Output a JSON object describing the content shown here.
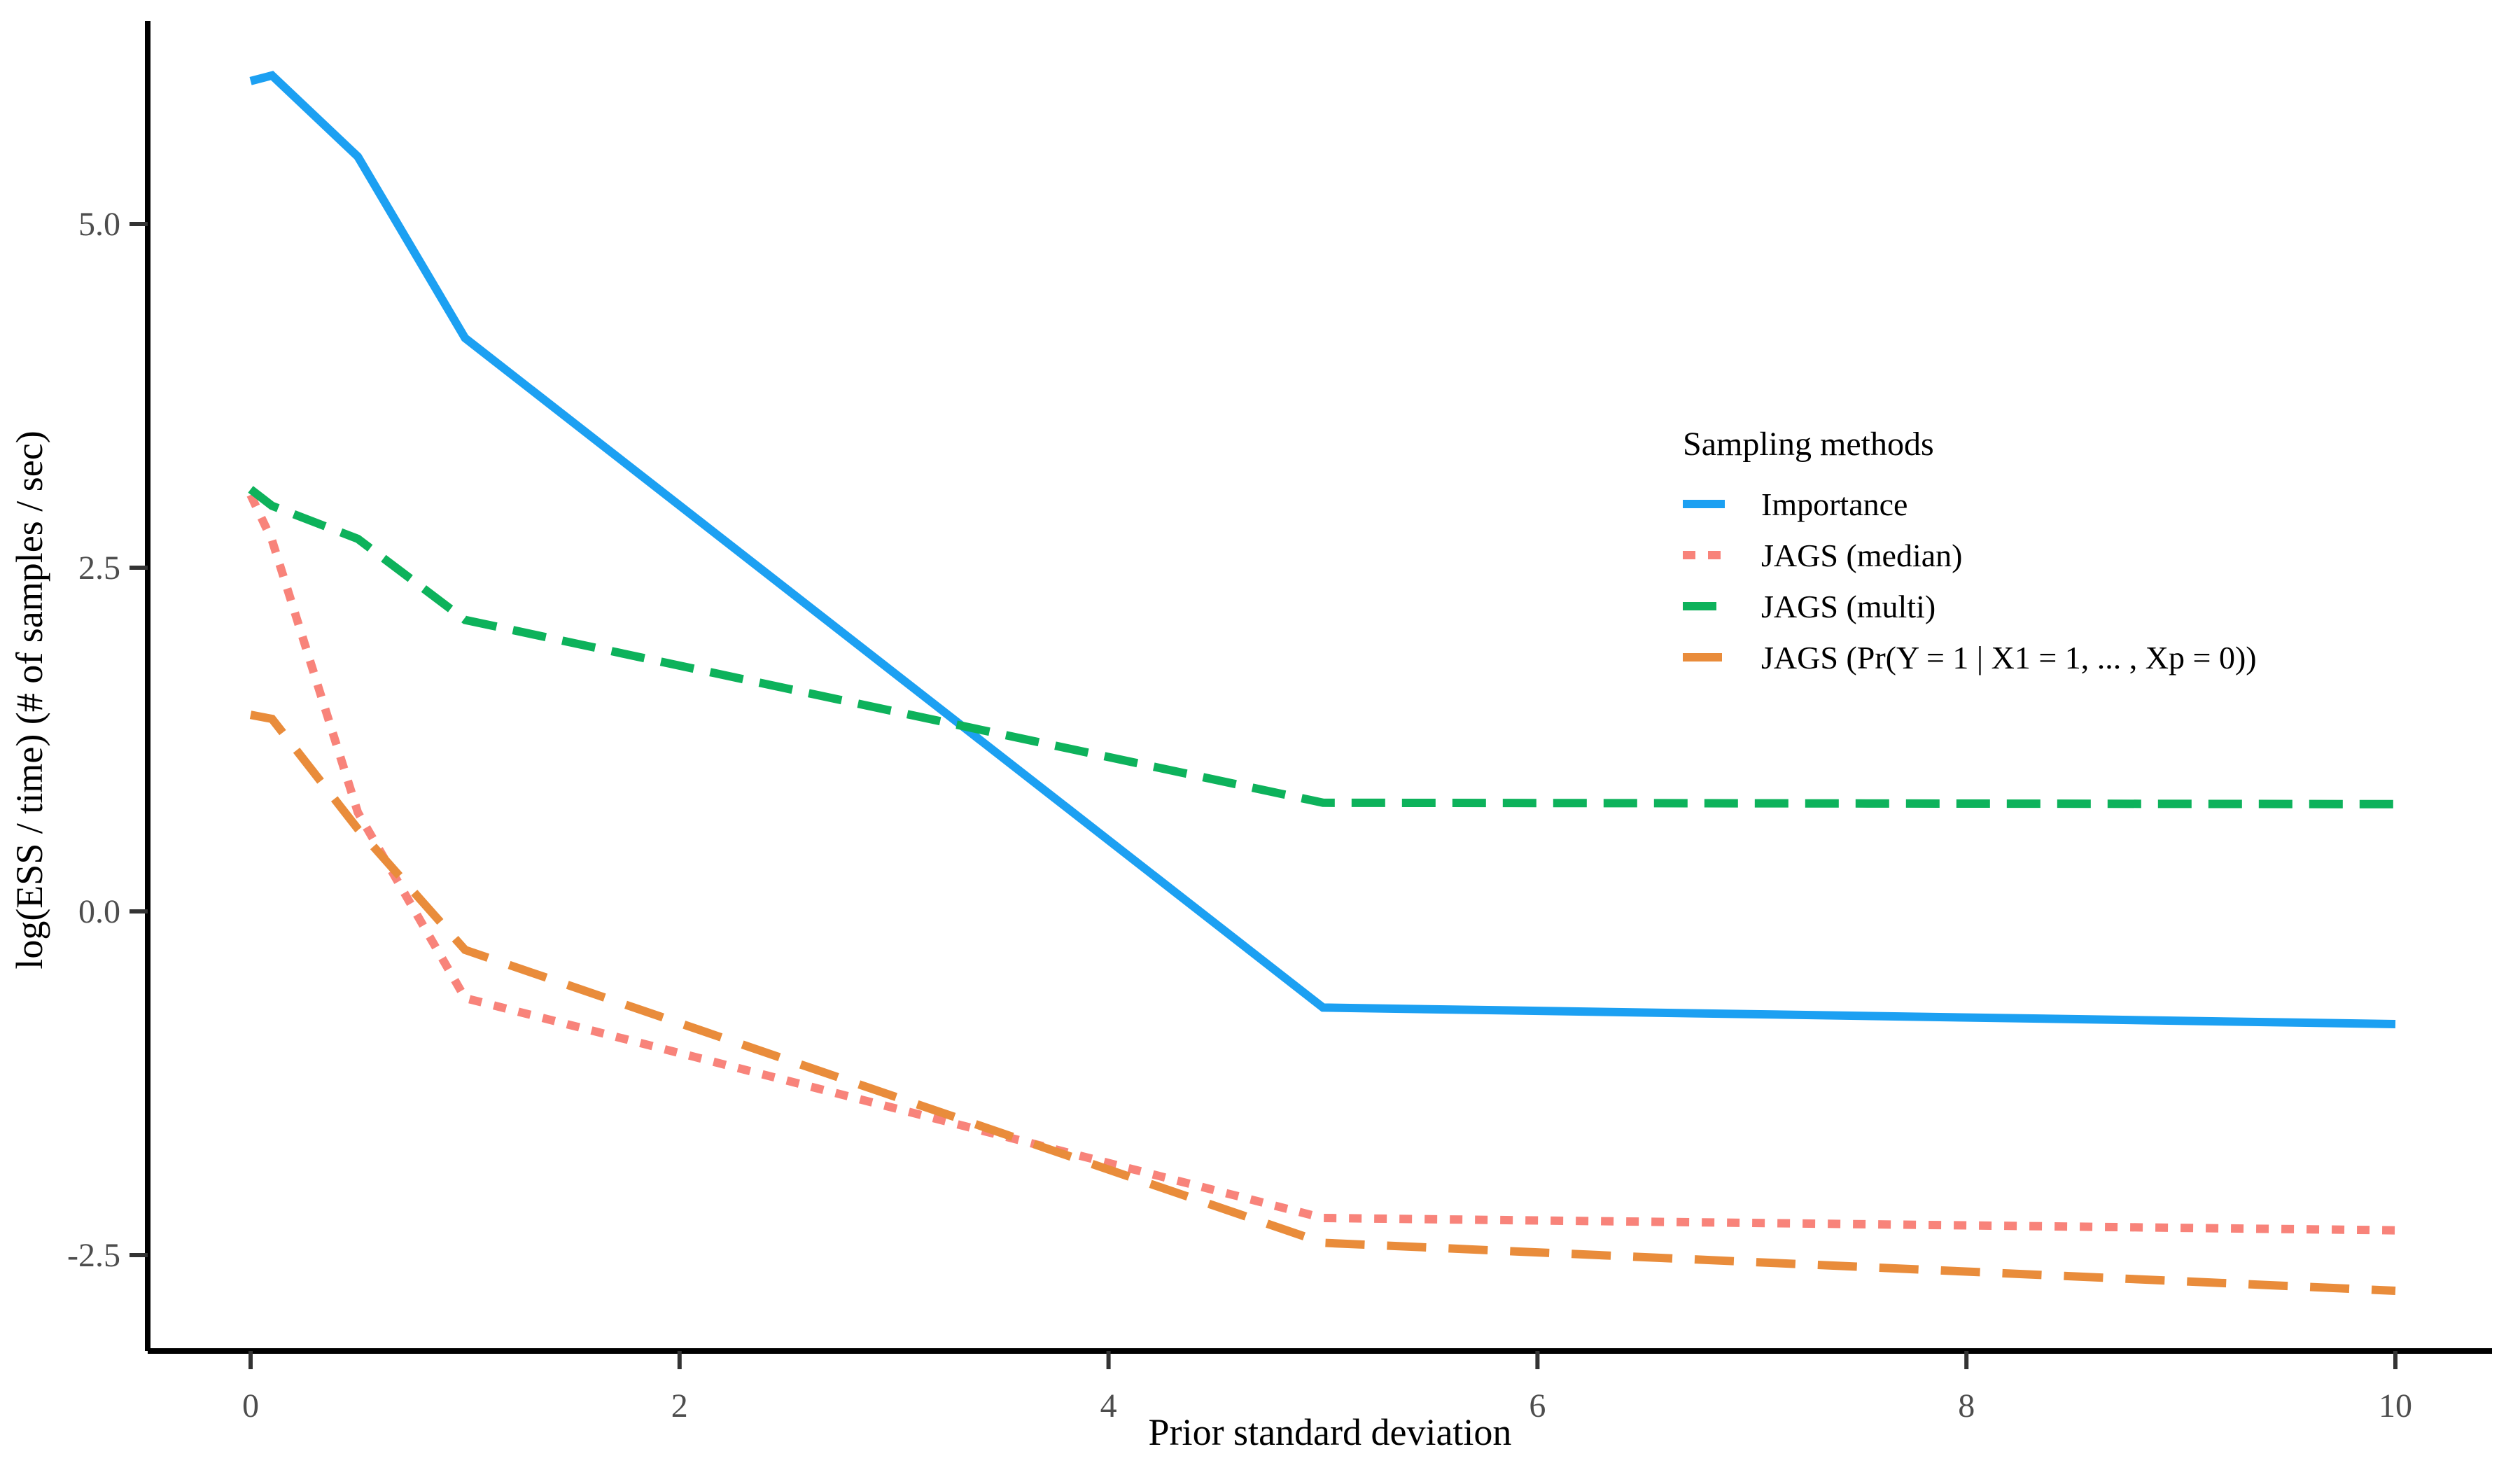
{
  "chart_data": {
    "type": "line",
    "title": "",
    "xlabel": "Prior standard deviation",
    "ylabel": "log(ESS / time) (# of samples / sec)",
    "xlim": [
      -0.5,
      10.45
    ],
    "ylim": [
      -3.2,
      6.5
    ],
    "grid": false,
    "background": "#ffffff",
    "x_ticks": {
      "values": [
        0,
        2,
        4,
        6,
        8,
        10
      ],
      "labels": [
        "0",
        "2",
        "4",
        "6",
        "8",
        "10"
      ]
    },
    "y_ticks": {
      "values": [
        -2.5,
        0,
        2.5,
        5
      ],
      "labels": [
        "-2.5",
        "0.0",
        "2.5",
        "5.0"
      ]
    },
    "legend": {
      "title": "Sampling methods",
      "position": "right-center"
    },
    "series": [
      {
        "name": "Importance",
        "color": "#1CA0F2",
        "dash": "none",
        "x": [
          0,
          0.1,
          0.5,
          1,
          5,
          10
        ],
        "y": [
          6.04,
          6.08,
          5.49,
          4.17,
          -0.7,
          -0.82
        ]
      },
      {
        "name": "JAGS (median)",
        "color": "#F8837A",
        "dash": "9 9",
        "x": [
          0,
          0.1,
          0.5,
          1,
          5,
          10
        ],
        "y": [
          3.03,
          2.7,
          0.72,
          -0.63,
          -2.23,
          -2.32
        ]
      },
      {
        "name": "JAGS (multi)",
        "color": "#0DB25B",
        "dash": "24 12",
        "x": [
          0,
          0.1,
          0.5,
          1,
          5,
          10
        ],
        "y": [
          3.07,
          2.95,
          2.71,
          2.12,
          0.79,
          0.78
        ]
      },
      {
        "name": "JAGS (Pr(Y = 1 | X1 = 1, ... , Xp = 0))",
        "color": "#E98C3B",
        "dash": "28 16",
        "x": [
          0,
          0.1,
          0.5,
          1,
          5,
          10
        ],
        "y": [
          1.43,
          1.4,
          0.6,
          -0.28,
          -2.41,
          -2.76
        ]
      }
    ]
  },
  "colors": {
    "axis_text": "#4D4D4D",
    "axis_line": "#000000",
    "background": "#FFFFFF"
  }
}
